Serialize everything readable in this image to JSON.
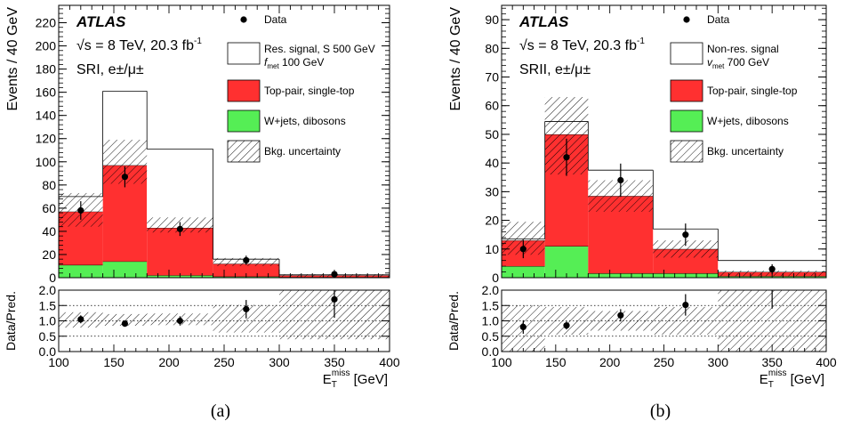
{
  "colors": {
    "top": "#ff3030",
    "wjets": "#55ee55",
    "signal_fill": "#ffffff",
    "data": "#000000"
  },
  "chart_data": [
    {
      "type": "bar",
      "panel_label": "(a)",
      "atlas_label": "ATLAS",
      "energy_text": "√s = 8 TeV, 20.3 fb",
      "energy_sup": "-1",
      "region_text": "SRI, e±/μ±",
      "ylabel": "Events / 40 GeV",
      "ratio_ylabel": "Data/Pred.",
      "xlabel_main": "E",
      "xlabel_sub": "T",
      "xlabel_sup": "miss",
      "xlabel_unit": "[GeV]",
      "xlim": [
        100,
        400
      ],
      "ylim": [
        0,
        235
      ],
      "ratio_ylim": [
        0,
        2
      ],
      "x_ticks": [
        100,
        150,
        200,
        250,
        300,
        350,
        400
      ],
      "y_ticks": [
        0,
        20,
        40,
        60,
        80,
        100,
        120,
        140,
        160,
        180,
        200,
        220
      ],
      "ratio_ticks": [
        "0.0",
        "0.5",
        "1.0",
        "1.5",
        "2.0"
      ],
      "bin_edges": [
        100,
        140,
        180,
        240,
        300,
        400
      ],
      "series": [
        {
          "name": "W+jets, dibosons",
          "key": "wjets",
          "values": [
            11,
            14,
            2,
            1,
            0.5
          ]
        },
        {
          "name": "Top-pair, single-top",
          "key": "top",
          "values": [
            46,
            83,
            41,
            11,
            1.5
          ]
        },
        {
          "name": "Res. signal, S 500 GeV f_met 100 GeV",
          "key": "signal",
          "values": [
            13,
            64,
            68,
            4,
            0.5
          ]
        }
      ],
      "bkg_uncertainty": [
        [
          44,
          73
        ],
        [
          81,
          119
        ],
        [
          39,
          52
        ],
        [
          10,
          17
        ],
        [
          0.5,
          3
        ]
      ],
      "data_points": [
        {
          "x": 120,
          "y": 58,
          "err": 8
        },
        {
          "x": 160,
          "y": 87,
          "err": 9
        },
        {
          "x": 210,
          "y": 42,
          "err": 6
        },
        {
          "x": 270,
          "y": 15,
          "err": 4
        },
        {
          "x": 350,
          "y": 3,
          "err": 2
        }
      ],
      "ratio_points": [
        {
          "x": 120,
          "y": 1.05,
          "err": 0.13
        },
        {
          "x": 160,
          "y": 0.91,
          "err": 0.1
        },
        {
          "x": 210,
          "y": 1.0,
          "err": 0.15
        },
        {
          "x": 270,
          "y": 1.38,
          "err": 0.3
        },
        {
          "x": 350,
          "y": 1.7,
          "err": 0.6
        }
      ],
      "ratio_uncertainty": [
        [
          0.78,
          1.28
        ],
        [
          0.84,
          1.22
        ],
        [
          0.86,
          1.24
        ],
        [
          0.62,
          1.52
        ],
        [
          0.4,
          2.0
        ]
      ],
      "legend": [
        {
          "key": "data",
          "label": "Data"
        },
        {
          "key": "signal",
          "label": "Res. signal, S 500 GeV",
          "label2": "f_met 100 GeV"
        },
        {
          "key": "top",
          "label": "Top-pair, single-top"
        },
        {
          "key": "wjets",
          "label": "W+jets, dibosons"
        },
        {
          "key": "unc",
          "label": "Bkg. uncertainty"
        }
      ]
    },
    {
      "type": "bar",
      "panel_label": "(b)",
      "atlas_label": "ATLAS",
      "energy_text": "√s = 8 TeV, 20.3 fb",
      "energy_sup": "-1",
      "region_text": "SRII, e±/μ±",
      "ylabel": "Events / 40 GeV",
      "ratio_ylabel": "Data/Pred.",
      "xlabel_main": "E",
      "xlabel_sub": "T",
      "xlabel_sup": "miss",
      "xlabel_unit": "[GeV]",
      "xlim": [
        100,
        400
      ],
      "ylim": [
        0,
        95
      ],
      "ratio_ylim": [
        0,
        2
      ],
      "x_ticks": [
        100,
        150,
        200,
        250,
        300,
        350,
        400
      ],
      "y_ticks": [
        0,
        10,
        20,
        30,
        40,
        50,
        60,
        70,
        80,
        90
      ],
      "ratio_ticks": [
        "0.0",
        "0.5",
        "1.0",
        "1.5",
        "2.0"
      ],
      "bin_edges": [
        100,
        140,
        180,
        240,
        300,
        400
      ],
      "series": [
        {
          "name": "W+jets, dibosons",
          "key": "wjets",
          "values": [
            4,
            11,
            1.5,
            1.5,
            0.5
          ]
        },
        {
          "name": "Top-pair, single-top",
          "key": "top",
          "values": [
            9,
            39,
            27,
            8.5,
            1.5
          ]
        },
        {
          "name": "Non-res. signal, v_met 700 GeV",
          "key": "signal",
          "values": [
            0.5,
            4.5,
            9,
            7,
            4
          ]
        }
      ],
      "bkg_uncertainty": [
        [
          8,
          19.5
        ],
        [
          36,
          63
        ],
        [
          23,
          34
        ],
        [
          7,
          13
        ],
        [
          0.5,
          2.5
        ]
      ],
      "data_points": [
        {
          "x": 120,
          "y": 10,
          "err": 3.2
        },
        {
          "x": 160,
          "y": 42,
          "err": 6.5
        },
        {
          "x": 210,
          "y": 34,
          "err": 5.8
        },
        {
          "x": 270,
          "y": 15,
          "err": 3.9
        },
        {
          "x": 350,
          "y": 3,
          "err": 1.7
        }
      ],
      "ratio_points": [
        {
          "x": 120,
          "y": 0.8,
          "err": 0.22
        },
        {
          "x": 160,
          "y": 0.85,
          "err": 0.13
        },
        {
          "x": 210,
          "y": 1.18,
          "err": 0.2
        },
        {
          "x": 270,
          "y": 1.52,
          "err": 0.35
        },
        {
          "x": 350,
          "y": 2.0,
          "err": 0.6
        }
      ],
      "ratio_uncertainty": [
        [
          0.0,
          1.5
        ],
        [
          0.55,
          1.45
        ],
        [
          0.68,
          1.32
        ],
        [
          0.55,
          1.45
        ],
        [
          0.0,
          2.0
        ]
      ],
      "legend": [
        {
          "key": "data",
          "label": "Data"
        },
        {
          "key": "signal",
          "label": "Non-res. signal",
          "label2": "v_met 700 GeV"
        },
        {
          "key": "top",
          "label": "Top-pair, single-top"
        },
        {
          "key": "wjets",
          "label": "W+jets, dibosons"
        },
        {
          "key": "unc",
          "label": "Bkg. uncertainty"
        }
      ]
    }
  ]
}
